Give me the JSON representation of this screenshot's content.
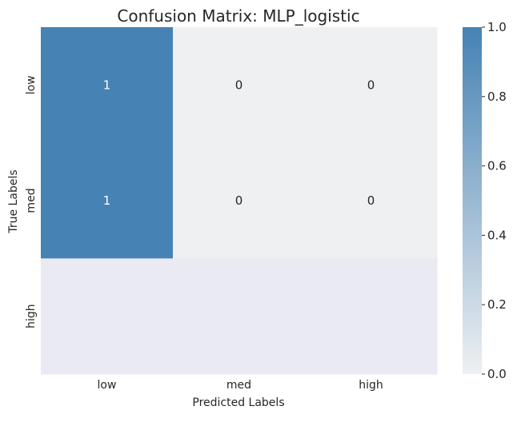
{
  "chart_data": {
    "type": "heatmap",
    "title": "Confusion Matrix: MLP_logistic",
    "xlabel": "Predicted Labels",
    "ylabel": "True Labels",
    "x_categories": [
      "low",
      "med",
      "high"
    ],
    "y_categories": [
      "low",
      "med",
      "high"
    ],
    "values": [
      [
        1,
        0,
        0
      ],
      [
        1,
        0,
        0
      ],
      [
        null,
        null,
        null
      ]
    ],
    "cell_labels": [
      [
        "1",
        "0",
        "0"
      ],
      [
        "1",
        "0",
        "0"
      ],
      [
        "",
        "",
        ""
      ]
    ],
    "colorbar": {
      "range": [
        0,
        1
      ],
      "ticks": [
        "0.0",
        "0.2",
        "0.4",
        "0.6",
        "0.8",
        "1.0"
      ],
      "low_color": "#eef0f2",
      "high_color": "#4682b4"
    },
    "missing_color": "#eaeaf2",
    "text_light": "#ffffff",
    "text_dark": "#262626"
  }
}
